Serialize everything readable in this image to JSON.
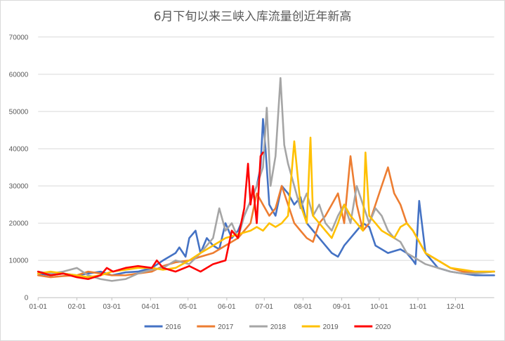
{
  "chart_data": {
    "type": "line",
    "title": "6月下旬以来三峡入库流量创近年新高",
    "xlabel": "",
    "ylabel": "",
    "ylim": [
      0,
      70000
    ],
    "yticks": [
      "0",
      "10000",
      "20000",
      "30000",
      "40000",
      "50000",
      "60000",
      "70000"
    ],
    "xticks": [
      "01-01",
      "02-01",
      "03-01",
      "04-01",
      "05-01",
      "06-01",
      "07-01",
      "08-01",
      "09-01",
      "10-01",
      "11-01",
      "12-01"
    ],
    "grid": true,
    "legend": "bottom",
    "series": [
      {
        "name": "2016",
        "color": "#4472c4",
        "x": [
          0,
          10,
          20,
          31,
          40,
          50,
          59,
          70,
          80,
          91,
          100,
          110,
          113,
          118,
          121,
          126,
          130,
          135,
          140,
          145,
          150,
          155,
          160,
          165,
          170,
          175,
          178,
          180,
          182,
          185,
          190,
          195,
          200,
          205,
          210,
          215,
          220,
          225,
          230,
          235,
          240,
          245,
          250,
          255,
          260,
          265,
          270,
          275,
          280,
          285,
          290,
          295,
          300,
          302,
          305,
          310,
          315,
          320,
          330,
          340,
          350,
          365
        ],
        "y": [
          6500,
          6000,
          6500,
          6000,
          6500,
          7000,
          6000,
          6800,
          7000,
          8000,
          10000,
          12000,
          13500,
          11000,
          16000,
          18000,
          12000,
          16000,
          14000,
          13000,
          20000,
          16000,
          18000,
          22000,
          26000,
          30000,
          35000,
          48000,
          40000,
          25000,
          22000,
          30000,
          28000,
          25000,
          27000,
          20000,
          18000,
          16000,
          14000,
          12000,
          11000,
          14000,
          16000,
          18000,
          20000,
          19000,
          14000,
          13000,
          12000,
          12500,
          13000,
          12000,
          10000,
          9000,
          26000,
          12000,
          10000,
          8000,
          7000,
          6500,
          6000,
          6000
        ]
      },
      {
        "name": "2017",
        "color": "#ed7d31",
        "x": [
          0,
          10,
          20,
          31,
          40,
          50,
          59,
          70,
          80,
          91,
          100,
          110,
          121,
          130,
          140,
          150,
          160,
          170,
          175,
          180,
          185,
          190,
          195,
          200,
          205,
          210,
          215,
          220,
          225,
          230,
          235,
          240,
          245,
          250,
          255,
          260,
          265,
          270,
          275,
          280,
          285,
          290,
          295,
          300,
          305,
          310,
          320,
          330,
          340,
          350,
          365
        ],
        "y": [
          6000,
          5500,
          5800,
          6000,
          7000,
          6500,
          6000,
          6000,
          6500,
          7000,
          8500,
          9500,
          10000,
          11000,
          12000,
          14000,
          16000,
          20000,
          28000,
          25000,
          22000,
          24000,
          30000,
          25000,
          20000,
          18000,
          16000,
          15000,
          20000,
          22000,
          25000,
          28000,
          20000,
          38000,
          25000,
          18000,
          20000,
          25000,
          30000,
          35000,
          28000,
          25000,
          20000,
          18000,
          15000,
          12000,
          10000,
          8000,
          7000,
          6800,
          7000
        ]
      },
      {
        "name": "2018",
        "color": "#a5a5a5",
        "x": [
          0,
          10,
          20,
          31,
          40,
          50,
          59,
          70,
          80,
          91,
          100,
          110,
          121,
          130,
          140,
          145,
          150,
          155,
          160,
          165,
          170,
          175,
          180,
          183,
          186,
          190,
          194,
          197,
          200,
          205,
          210,
          215,
          220,
          225,
          230,
          235,
          240,
          245,
          250,
          255,
          260,
          265,
          270,
          275,
          280,
          285,
          290,
          295,
          300,
          305,
          310,
          320,
          330,
          340,
          350,
          365
        ],
        "y": [
          7000,
          6500,
          7000,
          8000,
          6000,
          5000,
          4500,
          5000,
          6500,
          7500,
          8000,
          10000,
          9000,
          12000,
          16000,
          24000,
          18000,
          20000,
          16000,
          22000,
          26000,
          30000,
          35000,
          51000,
          30000,
          38000,
          59000,
          41000,
          36000,
          30000,
          24000,
          28000,
          22000,
          25000,
          20000,
          18000,
          22000,
          25000,
          20000,
          30000,
          25000,
          20000,
          24000,
          22000,
          18000,
          16000,
          15000,
          12000,
          11000,
          10000,
          9000,
          8000,
          7000,
          6500,
          6500,
          7000
        ]
      },
      {
        "name": "2019",
        "color": "#ffc000",
        "x": [
          0,
          10,
          20,
          31,
          40,
          50,
          59,
          70,
          80,
          91,
          100,
          110,
          121,
          130,
          140,
          150,
          160,
          170,
          175,
          180,
          185,
          190,
          195,
          200,
          205,
          210,
          215,
          218,
          220,
          225,
          230,
          235,
          240,
          245,
          250,
          255,
          260,
          262,
          265,
          270,
          275,
          280,
          285,
          290,
          295,
          300,
          305,
          310,
          320,
          330,
          340,
          350,
          365
        ],
        "y": [
          6500,
          7000,
          6500,
          6000,
          5500,
          6000,
          7000,
          7500,
          8000,
          8000,
          7500,
          8000,
          10000,
          12000,
          14000,
          16000,
          17000,
          18000,
          19000,
          18000,
          20000,
          19000,
          20000,
          22000,
          42000,
          25000,
          20000,
          43000,
          22000,
          20000,
          18000,
          16000,
          20000,
          25000,
          22000,
          20000,
          18000,
          39000,
          22000,
          20000,
          18000,
          17000,
          16000,
          19000,
          20000,
          18000,
          15000,
          12000,
          10000,
          8000,
          7500,
          7000,
          7000
        ]
      },
      {
        "name": "2020",
        "color": "#ff0000",
        "x": [
          0,
          10,
          20,
          31,
          40,
          50,
          55,
          60,
          70,
          80,
          91,
          95,
          100,
          110,
          121,
          130,
          140,
          150,
          155,
          160,
          165,
          168,
          170,
          172,
          175,
          178,
          180
        ],
        "y": [
          7000,
          6000,
          6500,
          5500,
          5000,
          6000,
          8000,
          7000,
          8000,
          8500,
          8000,
          10000,
          8000,
          7000,
          8500,
          7000,
          9000,
          10000,
          18000,
          16000,
          24000,
          36000,
          25000,
          30000,
          20000,
          38000,
          39000
        ]
      }
    ]
  }
}
